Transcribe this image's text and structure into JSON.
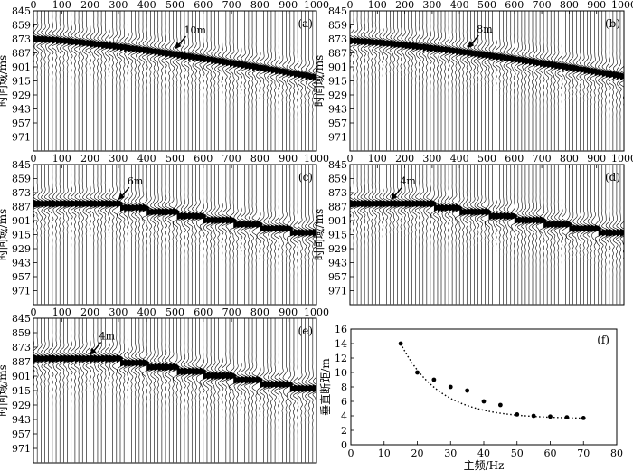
{
  "seismic": {
    "x_ticks": [
      "0",
      "100",
      "200",
      "300",
      "400",
      "500",
      "600",
      "700",
      "800",
      "900",
      "1000"
    ],
    "y_ticks": [
      "845",
      "859",
      "873",
      "887",
      "901",
      "915",
      "929",
      "943",
      "957",
      "971"
    ],
    "ylabel": "时间域/ms",
    "x_range": [
      0,
      1000
    ],
    "y_range": [
      845,
      985
    ],
    "panels": [
      {
        "letter": "(a)",
        "annotation": "10m",
        "arrow_x": 500,
        "event_start_ms": 873,
        "event_end_ms": 912,
        "stepped": false
      },
      {
        "letter": "(b)",
        "annotation": "8m",
        "arrow_x": 430,
        "event_start_ms": 875,
        "event_end_ms": 911,
        "stepped": false
      },
      {
        "letter": "(c)",
        "annotation": "6m",
        "arrow_x": 300,
        "event_start_ms": 884,
        "event_end_ms": 913,
        "stepped": true
      },
      {
        "letter": "(d)",
        "annotation": "4m",
        "arrow_x": 150,
        "event_start_ms": 884,
        "event_end_ms": 913,
        "stepped": true
      },
      {
        "letter": "(e)",
        "annotation": "4m",
        "arrow_x": 200,
        "event_start_ms": 884,
        "event_end_ms": 913,
        "stepped": true
      }
    ]
  },
  "chart_data": {
    "type": "scatter",
    "letter": "(f)",
    "xlabel": "主频/Hz",
    "ylabel": "垂直断距/m",
    "xlim": [
      0,
      80
    ],
    "ylim": [
      0,
      16
    ],
    "x_ticks": [
      "0",
      "10",
      "20",
      "30",
      "40",
      "50",
      "60",
      "70",
      "80"
    ],
    "y_ticks": [
      "0",
      "2",
      "4",
      "6",
      "8",
      "10",
      "12",
      "14",
      "16"
    ],
    "x": [
      15,
      20,
      25,
      30,
      35,
      40,
      45,
      50,
      55,
      60,
      65,
      70
    ],
    "y": [
      14,
      10,
      9,
      8,
      7.5,
      6,
      5.5,
      4.2,
      4,
      3.9,
      3.8,
      3.7
    ],
    "trend": "dotted exponential fit"
  },
  "colors": {
    "ink": "#000000",
    "paper": "#ffffff"
  }
}
